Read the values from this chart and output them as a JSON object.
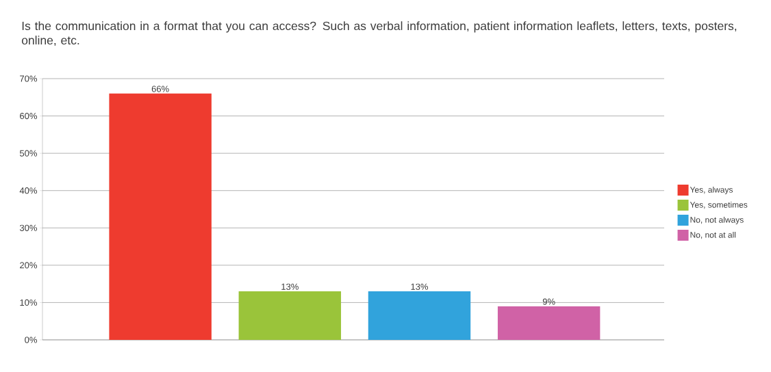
{
  "chart_data": {
    "type": "bar",
    "title": "Is the communication in a format that you can access? Such as verbal information, patient information leaflets, letters, texts, posters, online, etc.",
    "categories": [
      null,
      null,
      null,
      null
    ],
    "series": [
      {
        "name": "Yes, always",
        "color": "#ee3b2f",
        "values": [
          66,
          null,
          null,
          null
        ],
        "value_labels": [
          "66%",
          null,
          null,
          null
        ]
      },
      {
        "name": "Yes, sometimes",
        "color": "#9ac43a",
        "values": [
          null,
          13,
          null,
          null
        ],
        "value_labels": [
          null,
          "13%",
          null,
          null
        ]
      },
      {
        "name": "No, not always",
        "color": "#31a3dc",
        "values": [
          null,
          null,
          13,
          null
        ],
        "value_labels": [
          null,
          null,
          "13%",
          null
        ]
      },
      {
        "name": "No, not at all",
        "color": "#d062a6",
        "values": [
          null,
          null,
          null,
          9
        ],
        "value_labels": [
          null,
          null,
          null,
          "9%"
        ]
      }
    ],
    "ylim": [
      0,
      70
    ],
    "yticks": [
      {
        "value": 0,
        "label": "0%"
      },
      {
        "value": 10,
        "label": "10%"
      },
      {
        "value": 20,
        "label": "20%"
      },
      {
        "value": 30,
        "label": "30%"
      },
      {
        "value": 40,
        "label": "40%"
      },
      {
        "value": 50,
        "label": "50%"
      },
      {
        "value": 60,
        "label": "60%"
      },
      {
        "value": 70,
        "label": "70%"
      }
    ],
    "grid": "y",
    "legend": "right"
  }
}
